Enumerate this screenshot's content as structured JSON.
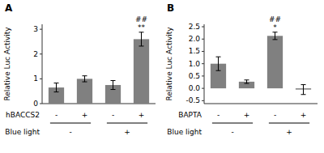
{
  "chart_data": [
    {
      "type": "bar",
      "title": "A",
      "ylabel": "Relative Luc Activity",
      "categories": [
        "-",
        "+",
        "-",
        "+"
      ],
      "xlabel": "hBACCS2",
      "group_label": "Blue light",
      "groups": [
        "-",
        "+"
      ],
      "values": [
        0.65,
        1.0,
        0.75,
        2.6
      ],
      "errors": [
        0.18,
        0.12,
        0.18,
        0.28
      ],
      "annotations": [
        null,
        null,
        null,
        "##\n**"
      ],
      "color": "#808080",
      "ylim": [
        0,
        3.2
      ],
      "yticks": [
        0,
        1,
        2,
        3
      ],
      "grid": false
    },
    {
      "type": "bar",
      "title": "B",
      "ylabel": "Relative Luc Activity",
      "categories": [
        "-",
        "+",
        "-",
        "+"
      ],
      "xlabel": "BAPTA",
      "group_label": "Blue light",
      "groups": [
        "-",
        "+"
      ],
      "values": [
        1.0,
        0.27,
        2.13,
        -0.05
      ],
      "errors": [
        0.28,
        0.07,
        0.15,
        0.2
      ],
      "annotations": [
        null,
        null,
        "##\n*",
        null
      ],
      "color": "#808080",
      "ylim": [
        -0.62,
        2.6
      ],
      "yticks": [
        -0.5,
        {
          "value": 0.0,
          "label": "0.0"
        },
        0.5,
        {
          "value": 1.0,
          "label": "1.0"
        },
        1.5,
        {
          "value": 2.0,
          "label": "2.0"
        },
        2.5
      ],
      "grid": false
    }
  ]
}
